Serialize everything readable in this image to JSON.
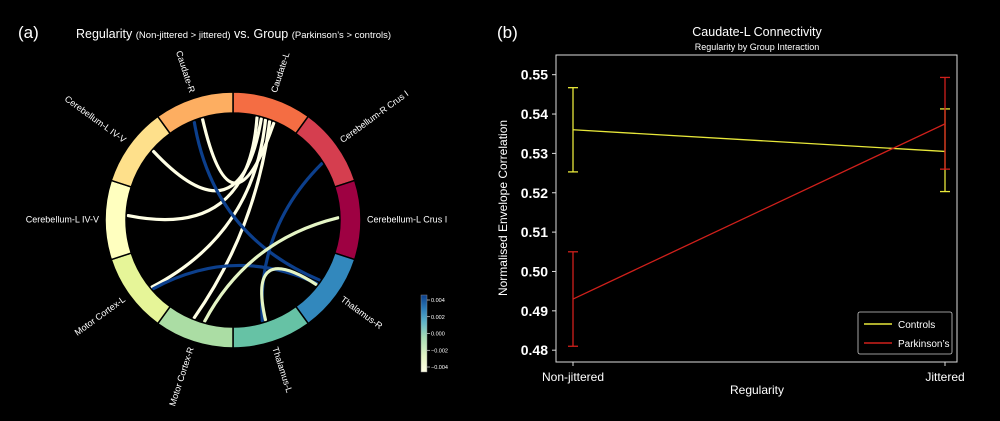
{
  "panel_a": {
    "label": "(a)",
    "title_main": "Regularity",
    "title_sub1": "(Non-jittered > jittered)",
    "title_mid": "vs. Group",
    "title_sub2": "(Parkinson’s > controls)"
  },
  "panel_b": {
    "label": "(b)"
  },
  "chart_data": [
    {
      "type": "chord",
      "nodes": [
        {
          "name": "Caudate-L",
          "color": "#f46d43"
        },
        {
          "name": "Cerebellum-R Crus I",
          "color": "#d53e4f"
        },
        {
          "name": "Cerebellum-L Crus I",
          "color": "#9e0142"
        },
        {
          "name": "Thalamus-R",
          "color": "#3288bd"
        },
        {
          "name": "Thalamus-L",
          "color": "#66c2a5"
        },
        {
          "name": "Motor Cortex-R",
          "color": "#abdda4"
        },
        {
          "name": "Motor Cortex-L",
          "color": "#e6f598"
        },
        {
          "name": "Cerebellum-L IV-V",
          "color": "#ffffbf"
        },
        {
          "name": "Cerebellum-L IV-V",
          "color": "#fee08b"
        },
        {
          "name": "Caudate-R",
          "color": "#fdae61"
        }
      ],
      "links": [
        {
          "source": "Caudate-L",
          "target": "Cerebellum-L IV-V",
          "value": -0.004
        },
        {
          "source": "Caudate-L",
          "target": "Cerebellum-L IV-V (upper)",
          "value": -0.004
        },
        {
          "source": "Caudate-L",
          "target": "Motor Cortex-L",
          "value": -0.004
        },
        {
          "source": "Caudate-L",
          "target": "Motor Cortex-R",
          "value": -0.004
        },
        {
          "source": "Caudate-L",
          "target": "Caudate-R",
          "value": -0.004
        },
        {
          "source": "Caudate-R",
          "target": "Thalamus-R",
          "value": 0.004
        },
        {
          "source": "Cerebellum-R Crus I",
          "target": "Thalamus-L",
          "value": 0.004
        },
        {
          "source": "Thalamus-R",
          "target": "Motor Cortex-L",
          "value": 0.004
        },
        {
          "source": "Cerebellum-L Crus I",
          "target": "Motor Cortex-R",
          "value": -0.003
        },
        {
          "source": "Thalamus-R",
          "target": "Thalamus-L",
          "value": -0.002
        }
      ],
      "colorbar": {
        "ticks": [
          "0.004",
          "0.002",
          "0.000",
          "−0.002",
          "−0.004"
        ],
        "range": [
          -0.004,
          0.004
        ],
        "colors": [
          "#ffffe5",
          "#e5f5c5",
          "#a8dcb5",
          "#5fb4c9",
          "#2d7db8",
          "#0c3f8c"
        ]
      }
    },
    {
      "type": "line",
      "title": "Caudate-L Connectivity",
      "subtitle": "Regularity by Group Interaction",
      "xlabel": "Regularity",
      "ylabel": "Normalised Envelope Correlation",
      "categories": [
        "Non-jittered",
        "Jittered"
      ],
      "ylim": [
        0.477,
        0.555
      ],
      "yticks": [
        "0.48",
        "0.49",
        "0.50",
        "0.51",
        "0.52",
        "0.53",
        "0.54",
        "0.55"
      ],
      "series": [
        {
          "name": "Controls",
          "color": "#e8e83a",
          "values": [
            0.536,
            0.5305
          ],
          "err_low": [
            0.5253,
            0.5203
          ],
          "err_high": [
            0.5467,
            0.5413
          ]
        },
        {
          "name": "Parkinson’s",
          "color": "#d0201b",
          "values": [
            0.493,
            0.5375
          ],
          "err_low": [
            0.481,
            0.526
          ],
          "err_high": [
            0.505,
            0.5493
          ]
        }
      ],
      "legend_position": "lower-right"
    }
  ]
}
